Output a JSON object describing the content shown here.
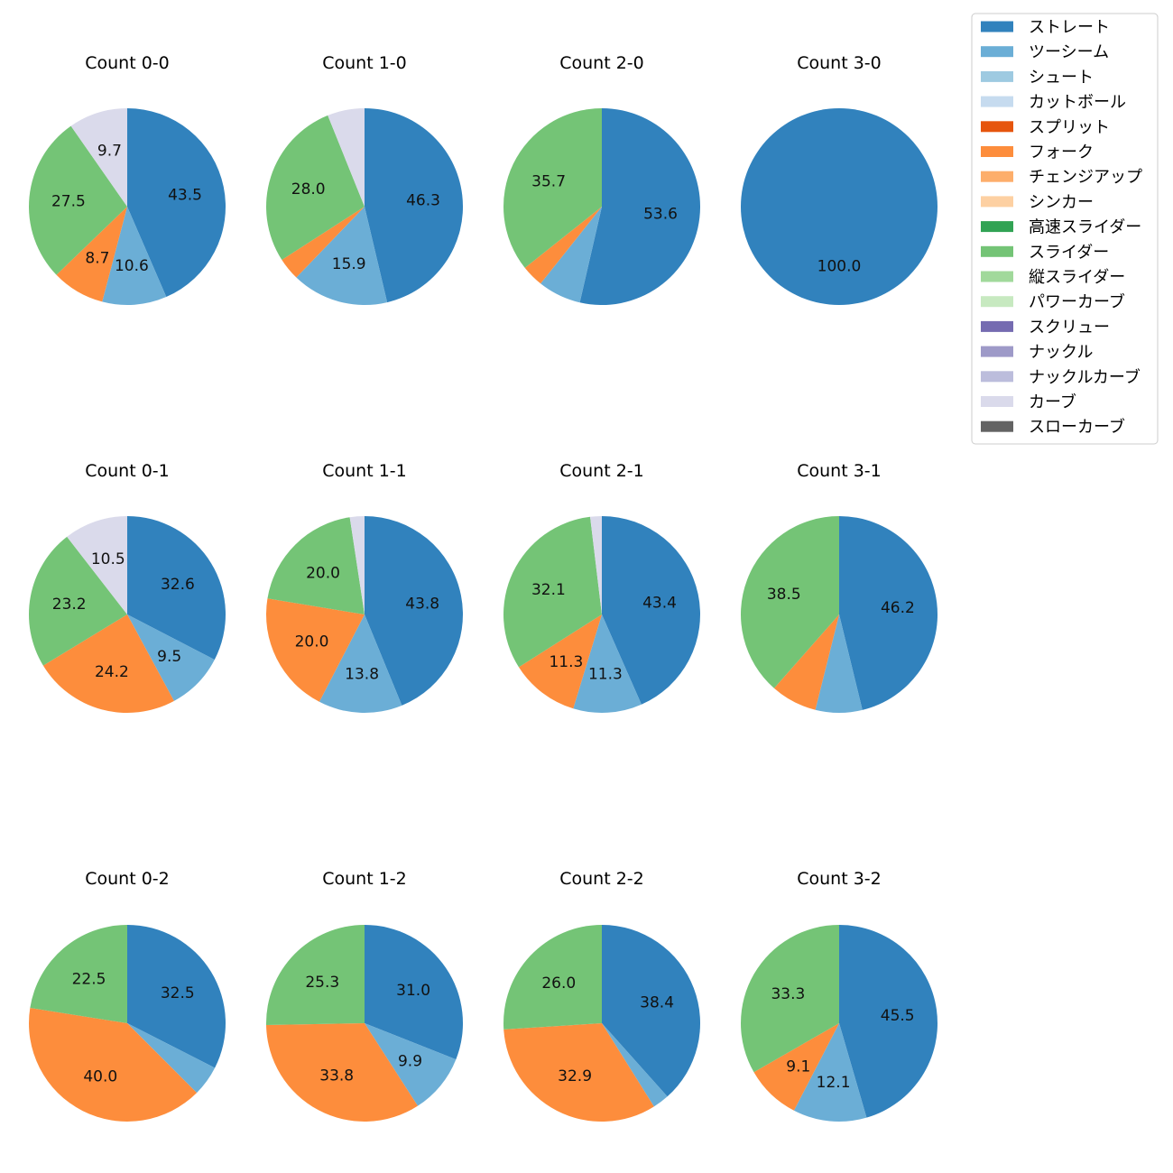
{
  "chart_data": {
    "type": "pie",
    "series_names": [
      "ストレート",
      "ツーシーム",
      "シュート",
      "カットボール",
      "スプリット",
      "フォーク",
      "チェンジアップ",
      "シンカー",
      "高速スライダー",
      "スライダー",
      "縦スライダー",
      "パワーカーブ",
      "スクリュー",
      "ナックル",
      "ナックルカーブ",
      "カーブ",
      "スローカーブ"
    ],
    "colors": [
      "#3182bd",
      "#6baed6",
      "#9ecae1",
      "#c6dbef",
      "#e6550d",
      "#fd8d3c",
      "#fdae6b",
      "#fdd0a2",
      "#31a354",
      "#74c476",
      "#a1d99b",
      "#c7e9c0",
      "#756bb1",
      "#9e9ac8",
      "#bcbddc",
      "#dadaeb",
      "#636363"
    ],
    "legend_placement": "top-right",
    "charts": [
      {
        "title": "Count 0-0",
        "slices": [
          {
            "name": "ストレート",
            "value": 43.5
          },
          {
            "name": "ツーシーム",
            "value": 10.6
          },
          {
            "name": "フォーク",
            "value": 8.7
          },
          {
            "name": "スライダー",
            "value": 27.5
          },
          {
            "name": "カーブ",
            "value": 9.7
          }
        ]
      },
      {
        "title": "Count 1-0",
        "slices": [
          {
            "name": "ストレート",
            "value": 46.3
          },
          {
            "name": "ツーシーム",
            "value": 15.9
          },
          {
            "name": "フォーク",
            "value": 3.7
          },
          {
            "name": "スライダー",
            "value": 28.0
          },
          {
            "name": "カーブ",
            "value": 6.1
          }
        ]
      },
      {
        "title": "Count 2-0",
        "slices": [
          {
            "name": "ストレート",
            "value": 53.6
          },
          {
            "name": "ツーシーム",
            "value": 7.1
          },
          {
            "name": "フォーク",
            "value": 3.6
          },
          {
            "name": "スライダー",
            "value": 35.7
          }
        ]
      },
      {
        "title": "Count 3-0",
        "slices": [
          {
            "name": "ストレート",
            "value": 100.0
          }
        ]
      },
      {
        "title": "Count 0-1",
        "slices": [
          {
            "name": "ストレート",
            "value": 32.6
          },
          {
            "name": "ツーシーム",
            "value": 9.5
          },
          {
            "name": "フォーク",
            "value": 24.2
          },
          {
            "name": "スライダー",
            "value": 23.2
          },
          {
            "name": "カーブ",
            "value": 10.5
          }
        ]
      },
      {
        "title": "Count 1-1",
        "slices": [
          {
            "name": "ストレート",
            "value": 43.8
          },
          {
            "name": "ツーシーム",
            "value": 13.8
          },
          {
            "name": "フォーク",
            "value": 20.0
          },
          {
            "name": "スライダー",
            "value": 20.0
          },
          {
            "name": "カーブ",
            "value": 2.4
          }
        ]
      },
      {
        "title": "Count 2-1",
        "slices": [
          {
            "name": "ストレート",
            "value": 43.4
          },
          {
            "name": "ツーシーム",
            "value": 11.3
          },
          {
            "name": "フォーク",
            "value": 11.3
          },
          {
            "name": "スライダー",
            "value": 32.1
          },
          {
            "name": "カーブ",
            "value": 1.9
          }
        ]
      },
      {
        "title": "Count 3-1",
        "slices": [
          {
            "name": "ストレート",
            "value": 46.2
          },
          {
            "name": "ツーシーム",
            "value": 7.7
          },
          {
            "name": "フォーク",
            "value": 7.6
          },
          {
            "name": "スライダー",
            "value": 38.5
          }
        ]
      },
      {
        "title": "Count 0-2",
        "slices": [
          {
            "name": "ストレート",
            "value": 32.5
          },
          {
            "name": "ツーシーム",
            "value": 5.0
          },
          {
            "name": "フォーク",
            "value": 40.0
          },
          {
            "name": "スライダー",
            "value": 22.5
          }
        ]
      },
      {
        "title": "Count 1-2",
        "slices": [
          {
            "name": "ストレート",
            "value": 31.0
          },
          {
            "name": "ツーシーム",
            "value": 9.9
          },
          {
            "name": "フォーク",
            "value": 33.8
          },
          {
            "name": "スライダー",
            "value": 25.3
          }
        ]
      },
      {
        "title": "Count 2-2",
        "slices": [
          {
            "name": "ストレート",
            "value": 38.4
          },
          {
            "name": "ツーシーム",
            "value": 2.7
          },
          {
            "name": "フォーク",
            "value": 32.9
          },
          {
            "name": "スライダー",
            "value": 26.0
          }
        ]
      },
      {
        "title": "Count 3-2",
        "slices": [
          {
            "name": "ストレート",
            "value": 45.5
          },
          {
            "name": "ツーシーム",
            "value": 12.1
          },
          {
            "name": "フォーク",
            "value": 9.1
          },
          {
            "name": "スライダー",
            "value": 33.3
          }
        ]
      }
    ]
  }
}
